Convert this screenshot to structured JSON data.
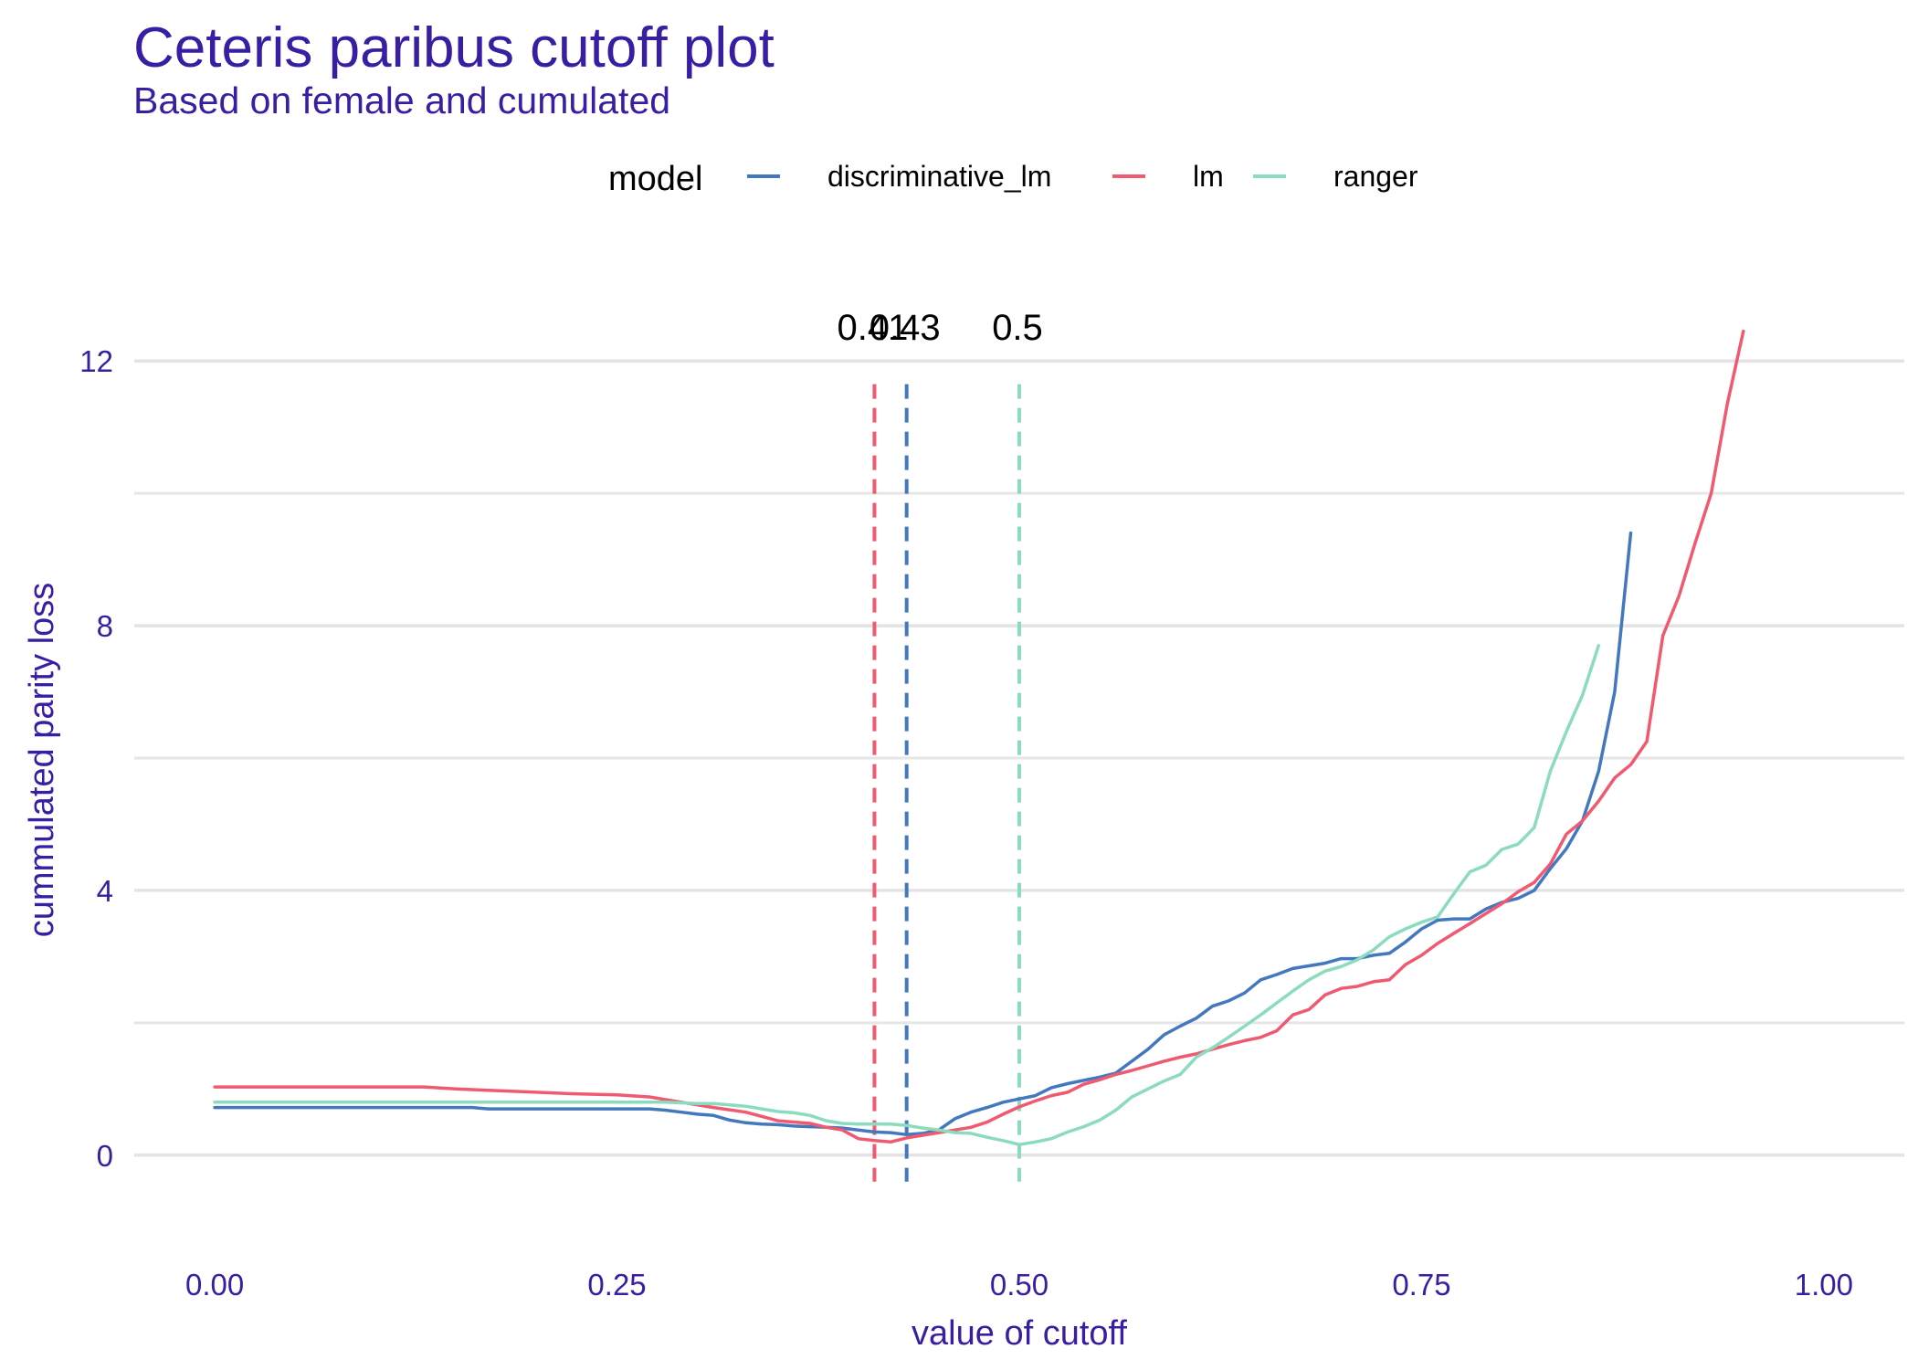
{
  "chart_data": {
    "type": "line",
    "title": "Ceteris paribus cutoff plot",
    "subtitle": "Based on female and cumulated",
    "xlabel": "value of cutoff",
    "ylabel": "cummulated parity loss",
    "xlim": [
      -0.05,
      1.05
    ],
    "ylim": [
      -0.9,
      12.9
    ],
    "x_ticks": [
      0,
      0.25,
      0.5,
      0.75,
      1
    ],
    "x_tick_labels": [
      "0.00",
      "0.25",
      "0.50",
      "0.75",
      "1.00"
    ],
    "y_ticks": [
      0,
      4,
      8,
      12
    ],
    "y_tick_labels": [
      "0",
      "4",
      "8",
      "12"
    ],
    "y_minor_gridlines": [
      2,
      6,
      10
    ],
    "grid": true,
    "legend": {
      "title": "model",
      "placement": "top"
    },
    "series": [
      {
        "name": "discriminative_lm",
        "color": "#4378bf",
        "cutoff": 0.43,
        "cutoff_label": "0.43",
        "x": [
          0,
          0.05,
          0.1,
          0.15,
          0.16,
          0.17,
          0.2,
          0.25,
          0.27,
          0.28,
          0.29,
          0.3,
          0.31,
          0.32,
          0.33,
          0.34,
          0.35,
          0.36,
          0.37,
          0.38,
          0.39,
          0.4,
          0.41,
          0.42,
          0.43,
          0.44,
          0.45,
          0.46,
          0.47,
          0.48,
          0.49,
          0.5,
          0.51,
          0.52,
          0.53,
          0.54,
          0.55,
          0.56,
          0.57,
          0.58,
          0.59,
          0.6,
          0.61,
          0.62,
          0.63,
          0.64,
          0.65,
          0.66,
          0.67,
          0.68,
          0.69,
          0.7,
          0.71,
          0.72,
          0.73,
          0.74,
          0.75,
          0.76,
          0.77,
          0.78,
          0.79,
          0.8,
          0.81,
          0.82,
          0.83,
          0.84,
          0.85,
          0.86,
          0.87,
          0.88
        ],
        "y": [
          0.72,
          0.72,
          0.72,
          0.72,
          0.72,
          0.7,
          0.7,
          0.7,
          0.7,
          0.68,
          0.65,
          0.62,
          0.6,
          0.53,
          0.49,
          0.47,
          0.46,
          0.44,
          0.43,
          0.42,
          0.41,
          0.38,
          0.35,
          0.34,
          0.31,
          0.33,
          0.38,
          0.55,
          0.65,
          0.72,
          0.8,
          0.85,
          0.9,
          1.02,
          1.08,
          1.13,
          1.18,
          1.24,
          1.42,
          1.6,
          1.82,
          1.95,
          2.07,
          2.25,
          2.33,
          2.45,
          2.65,
          2.73,
          2.82,
          2.86,
          2.9,
          2.97,
          2.97,
          3.02,
          3.05,
          3.22,
          3.42,
          3.55,
          3.57,
          3.57,
          3.72,
          3.82,
          3.88,
          4.0,
          4.33,
          4.63,
          5.05,
          5.8,
          7.0,
          9.4
        ]
      },
      {
        "name": "lm",
        "color": "#f05a71",
        "cutoff": 0.41,
        "cutoff_label": "0.41",
        "x": [
          0,
          0.05,
          0.1,
          0.13,
          0.15,
          0.17,
          0.2,
          0.22,
          0.25,
          0.27,
          0.29,
          0.31,
          0.33,
          0.35,
          0.37,
          0.38,
          0.39,
          0.4,
          0.41,
          0.42,
          0.43,
          0.44,
          0.45,
          0.46,
          0.47,
          0.48,
          0.49,
          0.5,
          0.51,
          0.52,
          0.53,
          0.54,
          0.55,
          0.56,
          0.57,
          0.58,
          0.59,
          0.6,
          0.61,
          0.62,
          0.63,
          0.64,
          0.65,
          0.66,
          0.67,
          0.68,
          0.69,
          0.7,
          0.71,
          0.72,
          0.73,
          0.74,
          0.75,
          0.76,
          0.77,
          0.78,
          0.79,
          0.8,
          0.81,
          0.82,
          0.83,
          0.84,
          0.85,
          0.86,
          0.87,
          0.88,
          0.89,
          0.9,
          0.91,
          0.92,
          0.93,
          0.94,
          0.95
        ],
        "y": [
          1.03,
          1.03,
          1.03,
          1.03,
          1.0,
          0.98,
          0.95,
          0.93,
          0.91,
          0.88,
          0.8,
          0.72,
          0.65,
          0.52,
          0.48,
          0.42,
          0.38,
          0.25,
          0.22,
          0.2,
          0.26,
          0.3,
          0.34,
          0.38,
          0.42,
          0.5,
          0.62,
          0.73,
          0.82,
          0.9,
          0.95,
          1.07,
          1.14,
          1.22,
          1.28,
          1.35,
          1.42,
          1.48,
          1.53,
          1.6,
          1.67,
          1.73,
          1.78,
          1.88,
          2.12,
          2.2,
          2.42,
          2.52,
          2.55,
          2.62,
          2.65,
          2.88,
          3.02,
          3.2,
          3.35,
          3.5,
          3.65,
          3.8,
          3.98,
          4.12,
          4.4,
          4.85,
          5.05,
          5.35,
          5.7,
          5.9,
          6.25,
          7.85,
          8.45,
          9.25,
          10.0,
          11.35,
          12.45
        ]
      },
      {
        "name": "ranger",
        "color": "#8bdcbe",
        "cutoff": 0.5,
        "cutoff_label": "0.5",
        "x": [
          0,
          0.05,
          0.1,
          0.15,
          0.2,
          0.25,
          0.28,
          0.3,
          0.31,
          0.32,
          0.33,
          0.34,
          0.35,
          0.36,
          0.37,
          0.38,
          0.39,
          0.4,
          0.41,
          0.42,
          0.43,
          0.44,
          0.45,
          0.46,
          0.47,
          0.48,
          0.49,
          0.5,
          0.51,
          0.52,
          0.53,
          0.54,
          0.55,
          0.56,
          0.57,
          0.58,
          0.59,
          0.6,
          0.61,
          0.62,
          0.63,
          0.64,
          0.65,
          0.66,
          0.67,
          0.68,
          0.69,
          0.7,
          0.71,
          0.72,
          0.73,
          0.74,
          0.75,
          0.76,
          0.77,
          0.78,
          0.79,
          0.8,
          0.81,
          0.82,
          0.83,
          0.84,
          0.85,
          0.86
        ],
        "y": [
          0.8,
          0.8,
          0.8,
          0.8,
          0.8,
          0.8,
          0.8,
          0.78,
          0.78,
          0.76,
          0.74,
          0.7,
          0.66,
          0.64,
          0.6,
          0.52,
          0.48,
          0.47,
          0.47,
          0.47,
          0.45,
          0.41,
          0.38,
          0.34,
          0.33,
          0.27,
          0.22,
          0.16,
          0.2,
          0.25,
          0.35,
          0.43,
          0.53,
          0.68,
          0.88,
          1.0,
          1.12,
          1.22,
          1.48,
          1.62,
          1.78,
          1.95,
          2.12,
          2.3,
          2.48,
          2.65,
          2.78,
          2.85,
          2.95,
          3.1,
          3.3,
          3.42,
          3.52,
          3.6,
          3.95,
          4.28,
          4.38,
          4.62,
          4.7,
          4.95,
          5.8,
          6.4,
          6.95,
          7.7
        ]
      }
    ]
  }
}
